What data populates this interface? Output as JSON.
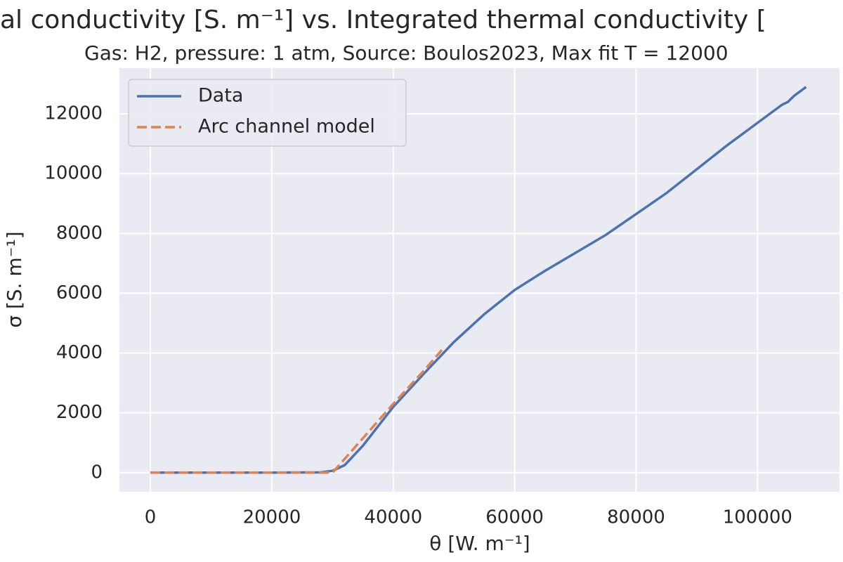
{
  "chart_data": {
    "type": "line",
    "title": "al conductivity [S. m⁻¹] vs. Integrated thermal conductivity [",
    "subtitle": "Gas: H2, pressure: 1 atm, Source: Boulos2023, Max fit T = 12000",
    "x_label": "θ [W. m⁻¹]",
    "y_label": "σ [S. m⁻¹]",
    "xlim": [
      -5100,
      113500
    ],
    "ylim": [
      -640,
      13530
    ],
    "xticks": [
      0,
      20000,
      40000,
      60000,
      80000,
      100000
    ],
    "yticks": [
      0,
      2000,
      4000,
      6000,
      8000,
      10000,
      12000
    ],
    "grid": true,
    "legend": "upper left",
    "series": [
      {
        "name": "Data",
        "color": "#4c72b0",
        "linestyle": "solid",
        "x": [
          0,
          10000,
          20000,
          28000,
          30000,
          32000,
          35000,
          40000,
          45000,
          50000,
          55000,
          60000,
          65000,
          70000,
          75000,
          80000,
          85000,
          90000,
          95000,
          100000,
          104000,
          105000,
          106000,
          107000,
          108000
        ],
        "values": [
          0,
          0,
          0,
          10,
          60,
          250,
          900,
          2200,
          3300,
          4370,
          5300,
          6110,
          6750,
          7350,
          7950,
          8650,
          9350,
          10150,
          10950,
          11700,
          12300,
          12400,
          12600,
          12750,
          12900
        ]
      },
      {
        "name": "Arc channel model",
        "color": "#dd8452",
        "linestyle": "dashed",
        "x": [
          0,
          10000,
          20000,
          30000,
          35000,
          40000,
          45000,
          48000
        ],
        "values": [
          0,
          0,
          0,
          0,
          1150,
          2300,
          3400,
          4100
        ]
      }
    ]
  }
}
